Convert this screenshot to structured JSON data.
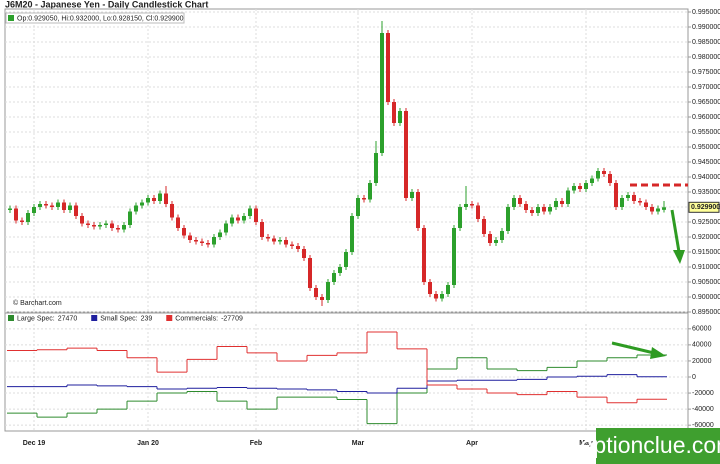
{
  "chart_data": [
    {
      "type": "candlestick",
      "title": "J6M20 - Japanese Yen - Daily Candlestick Chart",
      "info": "Op:0.929050, Hi:0.932000, Lo:0.928150, Cl:0.929900",
      "credit": "© Barchart.com",
      "last_label": "0.929900",
      "watermark": "optionclue.com",
      "up_color": "#2ca02c",
      "down_color": "#d62728",
      "grid": true,
      "categories": [
        null,
        null,
        null,
        null,
        "Dec 19",
        null,
        null,
        null,
        null,
        null,
        null,
        null,
        null,
        null,
        null,
        null,
        null,
        null,
        null,
        null,
        null,
        null,
        null,
        "Jan 20",
        null,
        null,
        null,
        null,
        null,
        null,
        null,
        null,
        null,
        null,
        null,
        null,
        null,
        null,
        null,
        null,
        null,
        "Feb",
        null,
        null,
        null,
        null,
        null,
        null,
        null,
        null,
        null,
        null,
        null,
        null,
        null,
        null,
        null,
        null,
        "Mar",
        null,
        null,
        null,
        null,
        null,
        null,
        null,
        null,
        null,
        null,
        null,
        null,
        null,
        null,
        null,
        null,
        null,
        null,
        "Apr",
        null,
        null,
        null,
        null,
        null,
        null,
        null,
        null,
        null,
        null,
        null,
        null,
        null,
        null,
        null,
        null,
        null,
        null,
        "May",
        null,
        null,
        null,
        null,
        null,
        null,
        null,
        null,
        null,
        null,
        null,
        null,
        null
      ],
      "open": [
        0.929,
        0.9295,
        0.9255,
        0.925,
        0.928,
        0.93,
        0.931,
        0.9305,
        0.93,
        0.9315,
        0.929,
        0.9305,
        0.927,
        0.9245,
        0.924,
        0.9235,
        0.924,
        0.9245,
        0.923,
        0.9225,
        0.924,
        0.9285,
        0.9305,
        0.9315,
        0.933,
        0.932,
        0.9345,
        0.931,
        0.9265,
        0.923,
        0.9205,
        0.919,
        0.9185,
        0.918,
        0.9175,
        0.92,
        0.9215,
        0.9245,
        0.9265,
        0.9255,
        0.927,
        0.9295,
        0.925,
        0.92,
        0.9195,
        0.9185,
        0.919,
        0.9175,
        0.917,
        0.916,
        0.913,
        0.903,
        0.9,
        0.899,
        0.905,
        0.908,
        0.91,
        0.915,
        0.927,
        0.933,
        0.9325,
        0.938,
        0.948,
        0.988,
        0.965,
        0.958,
        0.962,
        0.933,
        0.935,
        0.923,
        0.905,
        0.901,
        0.8995,
        0.901,
        0.904,
        0.923,
        0.93,
        0.931,
        0.9305,
        0.926,
        0.921,
        0.918,
        0.919,
        0.922,
        0.93,
        0.933,
        0.931,
        0.929,
        0.928,
        0.93,
        0.9285,
        0.93,
        0.932,
        0.931,
        0.9355,
        0.937,
        0.936,
        0.938,
        0.9395,
        0.942,
        0.941,
        0.938,
        0.93,
        0.933,
        0.934,
        0.932,
        0.9315,
        0.93,
        0.9285,
        0.92905
      ],
      "high": [
        0.9305,
        0.9305,
        0.9265,
        0.929,
        0.931,
        0.932,
        0.932,
        0.9315,
        0.9325,
        0.9325,
        0.9315,
        0.9315,
        0.928,
        0.9255,
        0.925,
        0.925,
        0.9255,
        0.9255,
        0.924,
        0.925,
        0.9295,
        0.9315,
        0.9325,
        0.934,
        0.934,
        0.9355,
        0.937,
        0.932,
        0.9275,
        0.924,
        0.9215,
        0.92,
        0.9195,
        0.919,
        0.921,
        0.9225,
        0.9255,
        0.9275,
        0.9275,
        0.928,
        0.9305,
        0.9305,
        0.926,
        0.921,
        0.9205,
        0.92,
        0.92,
        0.9185,
        0.918,
        0.917,
        0.914,
        0.904,
        0.901,
        0.906,
        0.909,
        0.911,
        0.916,
        0.928,
        0.934,
        0.934,
        0.939,
        0.952,
        0.992,
        0.989,
        0.966,
        0.963,
        0.963,
        0.936,
        0.936,
        0.924,
        0.906,
        0.902,
        0.902,
        0.905,
        0.924,
        0.931,
        0.937,
        0.932,
        0.9315,
        0.927,
        0.922,
        0.92,
        0.923,
        0.931,
        0.934,
        0.934,
        0.932,
        0.93,
        0.931,
        0.931,
        0.931,
        0.933,
        0.933,
        0.9365,
        0.938,
        0.938,
        0.939,
        0.9405,
        0.943,
        0.943,
        0.942,
        0.939,
        0.934,
        0.935,
        0.935,
        0.933,
        0.9325,
        0.931,
        0.9305,
        0.932
      ],
      "low": [
        0.928,
        0.9245,
        0.924,
        0.924,
        0.927,
        0.929,
        0.9295,
        0.929,
        0.929,
        0.928,
        0.928,
        0.926,
        0.9235,
        0.923,
        0.9225,
        0.9225,
        0.923,
        0.922,
        0.9215,
        0.9215,
        0.923,
        0.9275,
        0.9295,
        0.9305,
        0.931,
        0.931,
        0.93,
        0.9255,
        0.922,
        0.9195,
        0.918,
        0.9175,
        0.917,
        0.9165,
        0.9165,
        0.919,
        0.9205,
        0.9235,
        0.9245,
        0.9245,
        0.926,
        0.924,
        0.919,
        0.9185,
        0.9175,
        0.9175,
        0.9165,
        0.916,
        0.915,
        0.912,
        0.902,
        0.899,
        0.897,
        0.898,
        0.904,
        0.907,
        0.909,
        0.914,
        0.926,
        0.9315,
        0.9315,
        0.937,
        0.947,
        0.964,
        0.957,
        0.957,
        0.932,
        0.932,
        0.922,
        0.904,
        0.9,
        0.8985,
        0.8985,
        0.9,
        0.903,
        0.922,
        0.929,
        0.9295,
        0.925,
        0.92,
        0.917,
        0.917,
        0.918,
        0.921,
        0.929,
        0.93,
        0.928,
        0.927,
        0.927,
        0.9275,
        0.9275,
        0.929,
        0.93,
        0.93,
        0.9345,
        0.935,
        0.935,
        0.937,
        0.9385,
        0.94,
        0.937,
        0.929,
        0.929,
        0.932,
        0.931,
        0.9305,
        0.929,
        0.9275,
        0.9275,
        0.92815
      ],
      "close": [
        0.9295,
        0.9255,
        0.925,
        0.928,
        0.93,
        0.931,
        0.9305,
        0.93,
        0.9315,
        0.929,
        0.9305,
        0.927,
        0.9245,
        0.924,
        0.9235,
        0.924,
        0.9245,
        0.923,
        0.9225,
        0.924,
        0.9285,
        0.9305,
        0.9315,
        0.933,
        0.932,
        0.9345,
        0.931,
        0.9265,
        0.923,
        0.9205,
        0.919,
        0.9185,
        0.918,
        0.9175,
        0.92,
        0.9215,
        0.9245,
        0.9265,
        0.9255,
        0.927,
        0.9295,
        0.925,
        0.92,
        0.9195,
        0.9185,
        0.919,
        0.9175,
        0.917,
        0.916,
        0.913,
        0.903,
        0.9,
        0.899,
        0.905,
        0.908,
        0.91,
        0.915,
        0.927,
        0.933,
        0.9325,
        0.938,
        0.948,
        0.988,
        0.965,
        0.958,
        0.962,
        0.933,
        0.935,
        0.923,
        0.905,
        0.901,
        0.8995,
        0.901,
        0.904,
        0.923,
        0.93,
        0.931,
        0.9305,
        0.926,
        0.921,
        0.918,
        0.919,
        0.922,
        0.93,
        0.933,
        0.931,
        0.929,
        0.928,
        0.93,
        0.9285,
        0.93,
        0.932,
        0.931,
        0.9355,
        0.937,
        0.936,
        0.938,
        0.9395,
        0.942,
        0.941,
        0.938,
        0.93,
        0.933,
        0.934,
        0.932,
        0.9315,
        0.93,
        0.9285,
        0.9295,
        0.9299
      ],
      "ylim": [
        0.894,
        0.996
      ],
      "yticks": [
        {
          "value": 0.995,
          "label": "0.995000"
        },
        {
          "value": 0.99,
          "label": "0.990000"
        },
        {
          "value": 0.985,
          "label": "0.985000"
        },
        {
          "value": 0.98,
          "label": "0.980000"
        },
        {
          "value": 0.975,
          "label": "0.975000"
        },
        {
          "value": 0.97,
          "label": "0.970000"
        },
        {
          "value": 0.965,
          "label": "0.965000"
        },
        {
          "value": 0.96,
          "label": "0.960000"
        },
        {
          "value": 0.955,
          "label": "0.955000"
        },
        {
          "value": 0.95,
          "label": "0.950000"
        },
        {
          "value": 0.945,
          "label": "0.945000"
        },
        {
          "value": 0.94,
          "label": "0.940000"
        },
        {
          "value": 0.935,
          "label": "0.935000"
        },
        {
          "value": 0.93,
          "label": "0.930000"
        },
        {
          "value": 0.925,
          "label": "0.925000"
        },
        {
          "value": 0.92,
          "label": "0.920000"
        },
        {
          "value": 0.915,
          "label": "0.915000"
        },
        {
          "value": 0.91,
          "label": "0.910000"
        },
        {
          "value": 0.905,
          "label": "0.905000"
        },
        {
          "value": 0.9,
          "label": "0.900000"
        },
        {
          "value": 0.895,
          "label": "0.895000"
        }
      ]
    },
    {
      "type": "step",
      "grid": true,
      "series": [
        {
          "name": "Large Spec:",
          "color": "#2e8b2e",
          "values": [
            -45000,
            -50000,
            -45000,
            -40000,
            -30000,
            -20000,
            -18000,
            -30000,
            -40000,
            -25000,
            -25000,
            -28000,
            -58000,
            -20000,
            10000,
            24000,
            10000,
            8000,
            12000,
            20000,
            24000,
            27470
          ]
        },
        {
          "name": "Small Spec:",
          "color": "#1f1f9e",
          "values": [
            -12000,
            -12000,
            -10000,
            -11000,
            -12000,
            -15000,
            -14000,
            -13000,
            -14000,
            -15000,
            -16000,
            -18000,
            -20000,
            -14000,
            -5000,
            -4000,
            -4000,
            -3000,
            0,
            1000,
            3000,
            239
          ]
        },
        {
          "name": "Commercials:",
          "color": "#e03030",
          "values": [
            33000,
            34000,
            36000,
            33000,
            24000,
            6000,
            22000,
            38000,
            30000,
            20000,
            27000,
            30000,
            56000,
            35000,
            -10000,
            -15000,
            -20000,
            -22000,
            -18000,
            -25000,
            -32000,
            -27709
          ]
        }
      ],
      "ylim": [
        -66000,
        66000
      ],
      "yticks": [
        60000,
        40000,
        20000,
        0,
        -20000,
        -40000,
        -60000
      ]
    }
  ]
}
